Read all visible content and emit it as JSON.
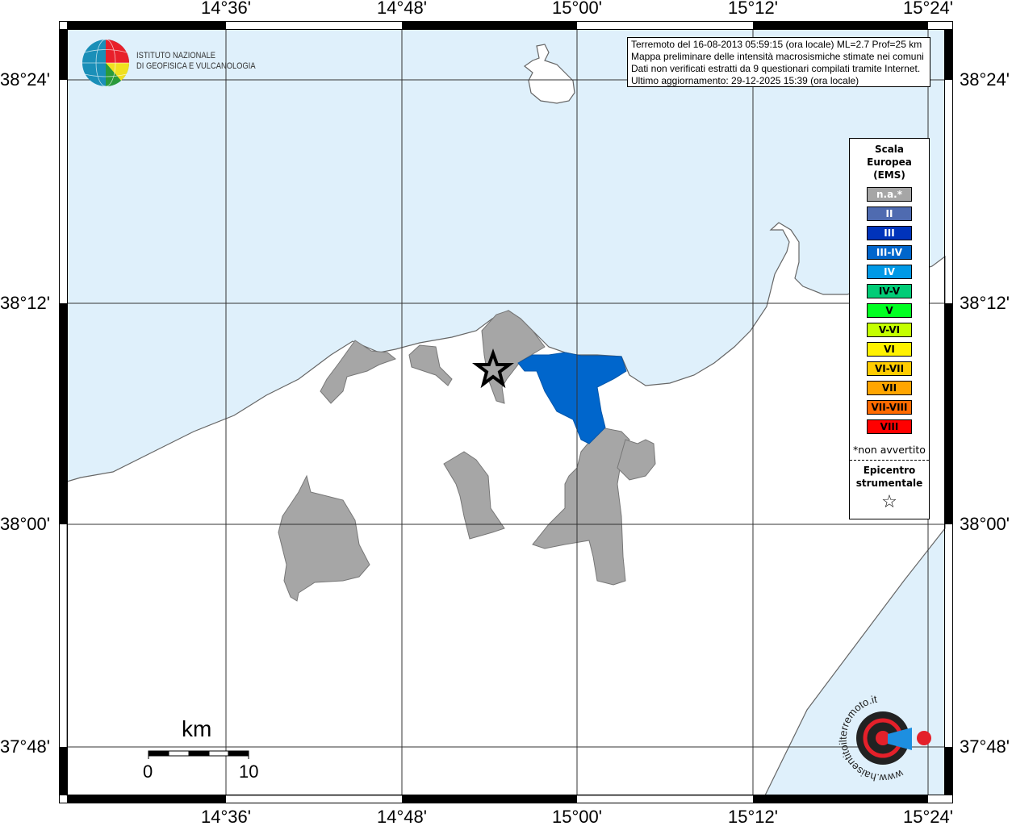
{
  "map": {
    "lon_labels": [
      "14°36'",
      "14°48'",
      "15°00'",
      "15°12'",
      "15°24'"
    ],
    "lat_labels": [
      "38°24'",
      "38°12'",
      "38°00'",
      "37°48'"
    ],
    "colors": {
      "sea": "#dff0fb",
      "land": "#ffffff",
      "not_felt": "#a6a6a6",
      "intensity_III_IV": "#0066cc"
    },
    "epicenter_icon": "star-icon"
  },
  "logo": {
    "line1": "ISTITUTO NAZIONALE",
    "line2": "DI GEOFISICA E VULCANOLOGIA"
  },
  "logo2": {
    "text": "www.haisentitoilterremoto.it"
  },
  "info": {
    "line1": "Terremoto del 16-08-2013 05:59:15 (ora locale) ML=2.7 Prof=25 km",
    "line2": "Mappa preliminare delle intensità macrosismiche stimate nei comuni",
    "line3": "Dati non verificati estratti da 9 questionari compilati tramite Internet.",
    "line4": "Ultimo aggiornamento: 29-12-2025 15:39 (ora locale)"
  },
  "legend": {
    "title1": "Scala",
    "title2": "Europea",
    "title3": "(EMS)",
    "items": [
      {
        "label": "n.a.*",
        "color": "#a6a6a6",
        "text": "#ffffff"
      },
      {
        "label": "II",
        "color": "#4f6bb0",
        "text": "#ffffff"
      },
      {
        "label": "III",
        "color": "#0033bb",
        "text": "#ffffff"
      },
      {
        "label": "III-IV",
        "color": "#0066cc",
        "text": "#ffffff"
      },
      {
        "label": "IV",
        "color": "#0099e6",
        "text": "#ffffff"
      },
      {
        "label": "IV-V",
        "color": "#00cc77",
        "text": "#000000"
      },
      {
        "label": "V",
        "color": "#00ff22",
        "text": "#000000"
      },
      {
        "label": "V-VI",
        "color": "#c4ff00",
        "text": "#000000"
      },
      {
        "label": "VI",
        "color": "#fff200",
        "text": "#000000"
      },
      {
        "label": "VI-VII",
        "color": "#ffcc00",
        "text": "#000000"
      },
      {
        "label": "VII",
        "color": "#ffa500",
        "text": "#000000"
      },
      {
        "label": "VII-VIII",
        "color": "#ff6a00",
        "text": "#000000"
      },
      {
        "label": "VIII",
        "color": "#ff0000",
        "text": "#000000"
      }
    ],
    "note": "*non avvertito",
    "epi1": "Epicentro",
    "epi2": "strumentale",
    "epi_symbol": "☆"
  },
  "scale": {
    "unit": "km",
    "min": "0",
    "max": "10"
  }
}
